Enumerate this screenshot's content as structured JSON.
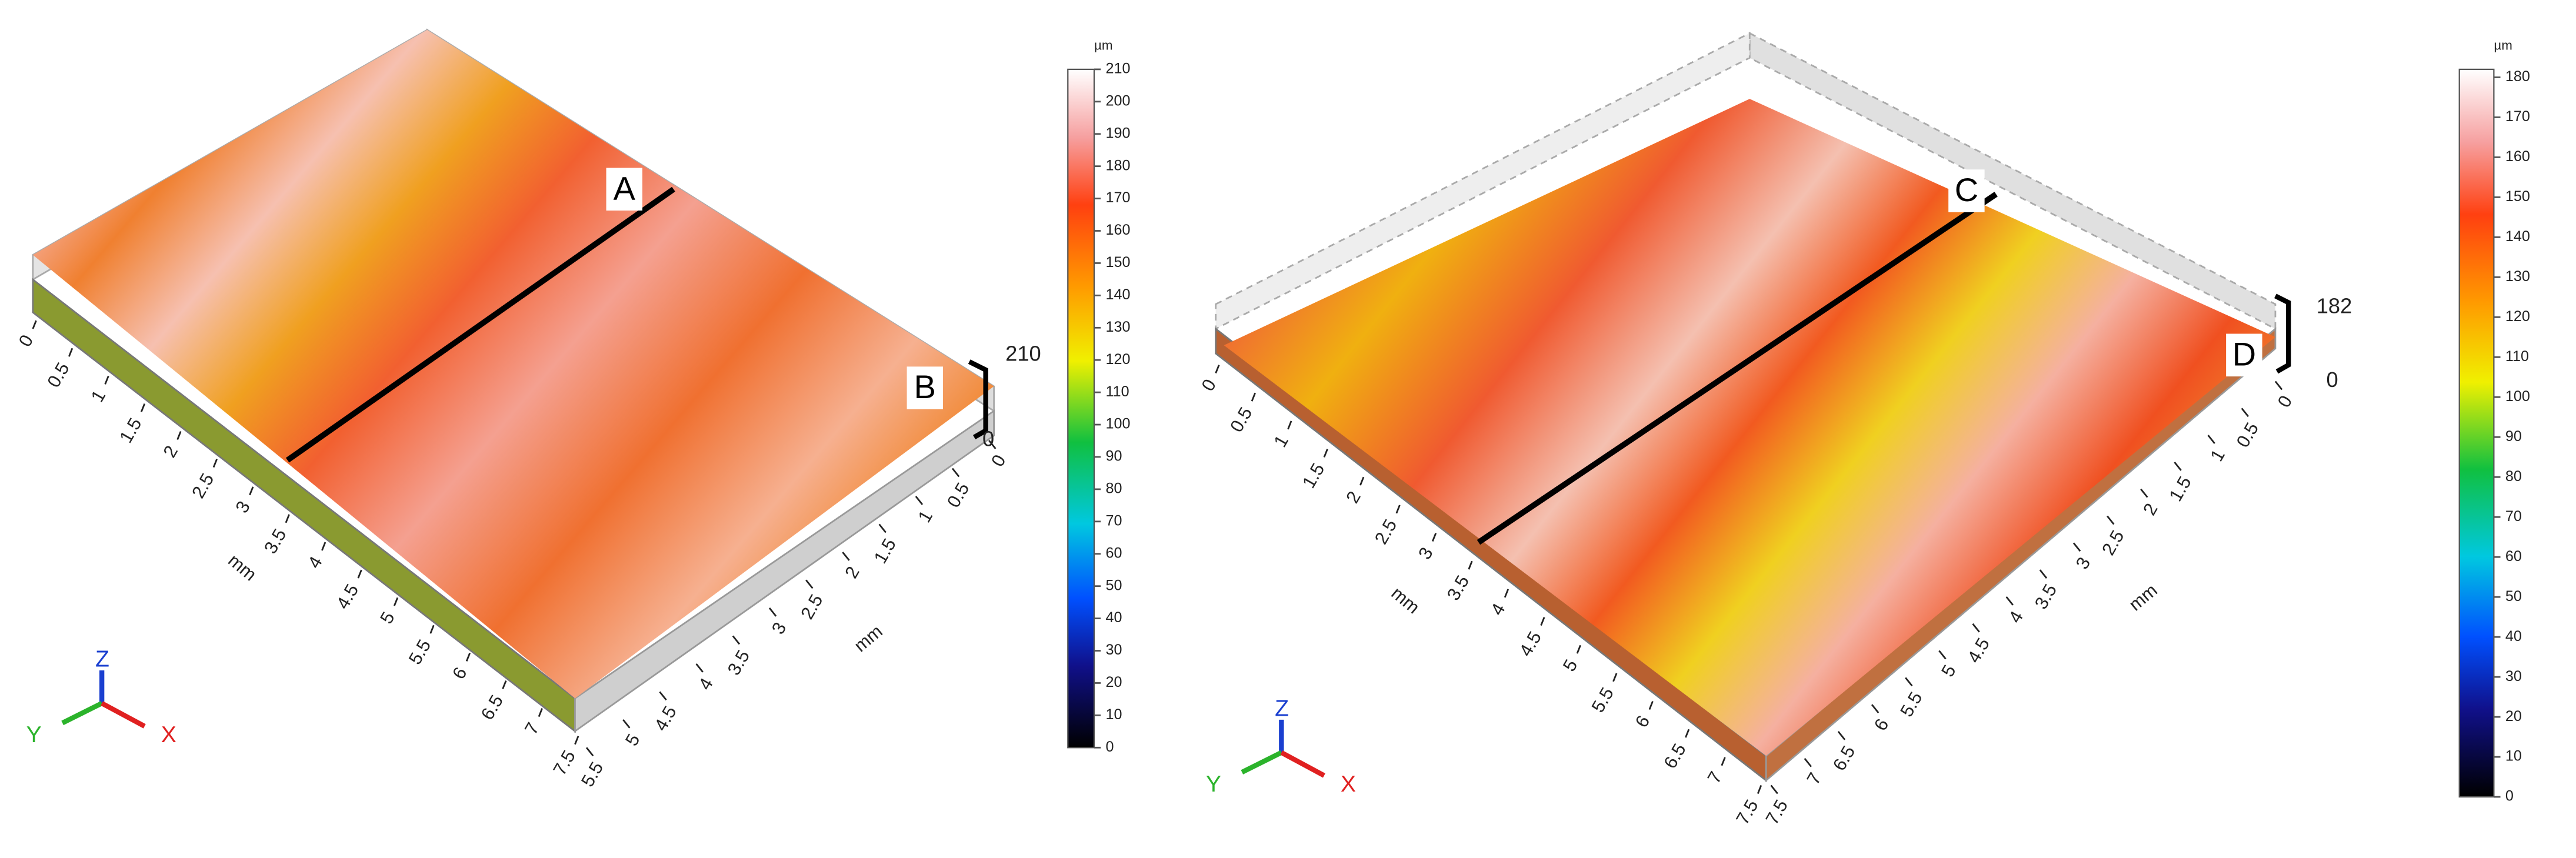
{
  "chart_data": [
    {
      "type": "surface3d",
      "markers": [
        "A",
        "B"
      ],
      "x_axis_label": "mm",
      "xlim": [
        0,
        7.5
      ],
      "xticks": [
        0,
        0.5,
        1,
        1.5,
        2,
        2.5,
        3,
        3.5,
        4,
        4.5,
        5,
        5.5,
        6,
        6.5,
        7,
        7.5
      ],
      "y_axis_label": "mm",
      "ylim": [
        0,
        5.5
      ],
      "yticks": [
        0,
        0.5,
        1,
        1.5,
        2,
        2.5,
        3,
        3.5,
        4,
        4.5,
        5,
        5.5
      ],
      "zlim": [
        0,
        210
      ],
      "colorbar": {
        "unit": "µm",
        "lim": [
          0,
          210
        ],
        "ticks": [
          0,
          10,
          20,
          30,
          40,
          50,
          60,
          70,
          80,
          90,
          100,
          110,
          120,
          130,
          140,
          150,
          160,
          170,
          180,
          190,
          200,
          210
        ]
      },
      "axes_triad": [
        "X",
        "Y",
        "Z"
      ]
    },
    {
      "type": "surface3d",
      "markers": [
        "C",
        "D"
      ],
      "x_axis_label": "mm",
      "xlim": [
        0,
        7.5
      ],
      "xticks": [
        0,
        0.5,
        1,
        1.5,
        2,
        2.5,
        3,
        3.5,
        4,
        4.5,
        5,
        5.5,
        6,
        6.5,
        7,
        7.5
      ],
      "y_axis_label": "mm",
      "ylim": [
        0,
        7.5
      ],
      "yticks": [
        0,
        0.5,
        1,
        1.5,
        2,
        2.5,
        3,
        3.5,
        4,
        4.5,
        5,
        5.5,
        6,
        6.5,
        7,
        7.5
      ],
      "zlim": [
        0,
        182
      ],
      "colorbar": {
        "unit": "µm",
        "lim": [
          0,
          182
        ],
        "ticks": [
          0,
          10,
          20,
          30,
          40,
          50,
          60,
          70,
          80,
          90,
          100,
          110,
          120,
          130,
          140,
          150,
          160,
          170,
          180
        ]
      },
      "axes_triad": [
        "X",
        "Y",
        "Z"
      ]
    }
  ]
}
